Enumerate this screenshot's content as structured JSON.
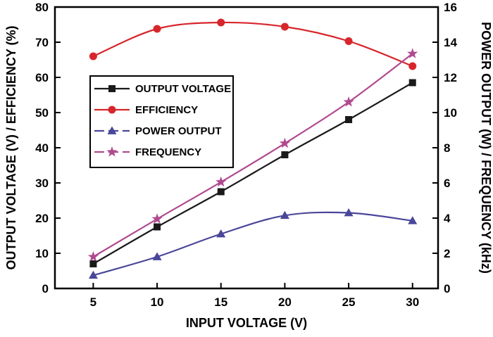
{
  "chart_data": {
    "type": "line",
    "xlabel": "INPUT VOLTAGE (V)",
    "ylabel_left": "OUTPUT VOLTAGE (V) / EFFICIENCY (%)",
    "ylabel_right": "POWER OUTPUT (W) / FREQUENCY (kHz)",
    "xlim": [
      2,
      32
    ],
    "xticks": [
      5,
      10,
      15,
      20,
      25,
      30
    ],
    "ylim_left": [
      0,
      80
    ],
    "yticks_left": [
      0,
      10,
      20,
      30,
      40,
      50,
      60,
      70,
      80
    ],
    "ylim_right": [
      0,
      16
    ],
    "yticks_right": [
      0,
      2,
      4,
      6,
      8,
      10,
      12,
      14,
      16
    ],
    "grid": false,
    "legend_position": "upper-left",
    "series": [
      {
        "name": "OUTPUT VOLTAGE",
        "axis": "left",
        "marker": "square",
        "color": "#1a1a1a",
        "dashed": false,
        "x": [
          5,
          10,
          15,
          20,
          25,
          30
        ],
        "y": [
          7.0,
          17.5,
          27.5,
          38.0,
          48.0,
          58.5
        ]
      },
      {
        "name": "EFFICIENCY",
        "axis": "left",
        "marker": "circle",
        "color": "#d7262b",
        "dashed": false,
        "x": [
          5,
          10,
          15,
          20,
          25,
          30
        ],
        "y": [
          66.0,
          73.8,
          75.6,
          74.4,
          70.3,
          63.2
        ]
      },
      {
        "name": "POWER OUTPUT",
        "axis": "right",
        "marker": "triangle",
        "color": "#4a4699",
        "dashed": true,
        "x": [
          5,
          10,
          15,
          20,
          25,
          30
        ],
        "y": [
          0.75,
          1.8,
          3.1,
          4.15,
          4.3,
          3.85
        ]
      },
      {
        "name": "FREQUENCY",
        "axis": "right",
        "marker": "star",
        "color": "#b04a8f",
        "dashed": true,
        "x": [
          5,
          10,
          15,
          20,
          25,
          30
        ],
        "y": [
          1.8,
          3.95,
          6.05,
          8.25,
          10.6,
          13.35
        ]
      }
    ]
  }
}
